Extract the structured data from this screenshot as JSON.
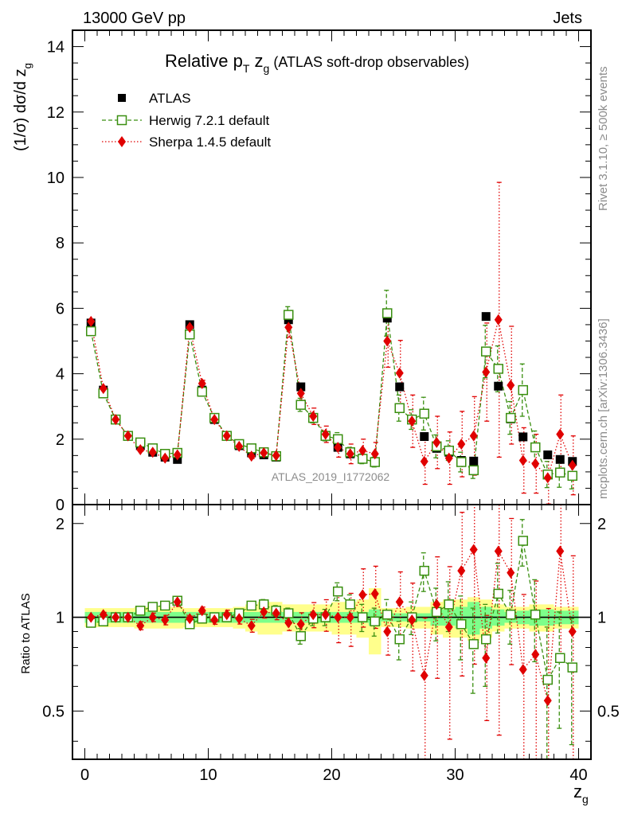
{
  "header": {
    "left": "13000 GeV pp",
    "right": "Jets"
  },
  "side_labels": {
    "rivet": "Rivet 3.1.10, ≥ 500k events",
    "mcplots": "mcplots.cern.ch [arXiv:1306.3436]"
  },
  "watermark": "ATLAS_2019_I1772062",
  "colors": {
    "atlas": "#000000",
    "herwig": "#3a8f10",
    "sherpa": "#e00000",
    "band_inner": "#7dff8a",
    "band_outer": "#ffff8c"
  },
  "chart_data": [
    {
      "name": "main",
      "type": "scatter",
      "title": "Relative pT zg (ATLAS soft-drop observables)",
      "title_parts": {
        "pre": "Relative p",
        "sub_t": "T",
        "mid": " z",
        "sub_g": "g",
        "post": " (ATLAS soft-drop observables)"
      },
      "ylabel": "(1/σ) dσ/d z",
      "ylabel_sub": "g",
      "xlim": [
        -1,
        41
      ],
      "ylim": [
        0,
        14.5
      ],
      "yticks": [
        0,
        2,
        4,
        6,
        8,
        10,
        12,
        14
      ],
      "x": [
        0.5,
        1.5,
        2.5,
        3.5,
        4.5,
        5.5,
        6.5,
        7.5,
        8.5,
        9.5,
        10.5,
        11.5,
        12.5,
        13.5,
        14.5,
        15.5,
        16.5,
        17.5,
        18.5,
        19.5,
        20.5,
        21.5,
        22.5,
        23.5,
        24.5,
        25.5,
        26.5,
        27.5,
        28.5,
        29.5,
        30.5,
        31.5,
        32.5,
        33.5,
        34.5,
        35.5,
        36.5,
        37.5,
        38.5,
        39.5
      ],
      "series": [
        {
          "name": "ATLAS",
          "marker": "filled-square",
          "values": [
            5.55,
            3.5,
            2.6,
            2.1,
            1.8,
            1.6,
            1.45,
            1.38,
            5.5,
            3.5,
            2.6,
            2.1,
            1.8,
            1.58,
            1.52,
            1.45,
            5.65,
            3.6,
            2.65,
            2.1,
            1.75,
            1.55,
            1.4,
            1.3,
            5.7,
            3.6,
            2.6,
            2.08,
            1.72,
            1.6,
            1.35,
            1.33,
            5.75,
            3.62,
            2.62,
            2.07,
            1.75,
            1.52,
            1.38,
            1.32
          ],
          "errors": [
            0.05,
            0.04,
            0.03,
            0.03,
            0.03,
            0.02,
            0.02,
            0.03,
            0.06,
            0.04,
            0.03,
            0.03,
            0.02,
            0.02,
            0.03,
            0.03,
            0.07,
            0.04,
            0.03,
            0.03,
            0.03,
            0.03,
            0.03,
            0.03,
            0.08,
            0.05,
            0.04,
            0.04,
            0.04,
            0.04,
            0.04,
            0.05,
            0.1,
            0.06,
            0.05,
            0.05,
            0.05,
            0.05,
            0.05,
            0.06
          ]
        },
        {
          "name": "Herwig 7.2.1 default",
          "marker": "open-square",
          "values": [
            5.3,
            3.4,
            2.6,
            2.1,
            1.9,
            1.72,
            1.55,
            1.58,
            5.2,
            3.45,
            2.65,
            2.1,
            1.85,
            1.72,
            1.6,
            1.48,
            5.8,
            3.05,
            2.65,
            2.1,
            2.0,
            1.6,
            1.4,
            1.3,
            5.85,
            2.95,
            2.6,
            2.78,
            1.78,
            1.65,
            1.3,
            1.05,
            4.68,
            4.15,
            2.65,
            3.5,
            1.75,
            0.92,
            0.98,
            0.88
          ],
          "errors": [
            0.05,
            0.05,
            0.05,
            0.05,
            0.05,
            0.05,
            0.05,
            0.05,
            0.1,
            0.1,
            0.08,
            0.07,
            0.06,
            0.06,
            0.06,
            0.06,
            0.25,
            0.2,
            0.15,
            0.15,
            0.2,
            0.15,
            0.15,
            0.15,
            0.7,
            0.4,
            0.3,
            0.5,
            0.35,
            0.3,
            0.3,
            0.25,
            0.8,
            0.7,
            0.5,
            0.8,
            0.5,
            0.4,
            0.45,
            0.4
          ]
        },
        {
          "name": "Sherpa 1.4.5 default",
          "marker": "filled-diamond",
          "values": [
            5.6,
            3.55,
            2.6,
            2.1,
            1.68,
            1.6,
            1.42,
            1.52,
            5.42,
            3.7,
            2.6,
            2.1,
            1.78,
            1.48,
            1.58,
            1.5,
            5.42,
            3.4,
            2.7,
            2.15,
            1.75,
            1.55,
            1.65,
            1.55,
            5.0,
            4.02,
            2.55,
            1.32,
            1.9,
            1.42,
            1.85,
            2.1,
            4.05,
            5.65,
            3.65,
            1.35,
            1.25,
            0.82,
            2.15,
            1.2
          ],
          "errors": [
            0.06,
            0.06,
            0.05,
            0.05,
            0.05,
            0.05,
            0.05,
            0.05,
            0.1,
            0.1,
            0.08,
            0.07,
            0.07,
            0.07,
            0.07,
            0.07,
            0.3,
            0.3,
            0.25,
            0.25,
            0.3,
            0.3,
            0.35,
            0.35,
            0.8,
            1.0,
            0.8,
            0.7,
            0.8,
            0.8,
            1.0,
            1.2,
            1.5,
            4.2,
            1.8,
            1.0,
            0.9,
            0.8,
            1.2,
            0.9
          ]
        }
      ]
    },
    {
      "name": "ratio",
      "type": "scatter",
      "ylabel": "Ratio to ATLAS",
      "xlabel": "z",
      "xlabel_sub": "g",
      "xlim": [
        -1,
        41
      ],
      "ylim": [
        0.35,
        2.3
      ],
      "yticks": [
        0.5,
        1,
        2
      ],
      "ytick_labels": [
        "0.5",
        "1",
        "2"
      ],
      "xticks": [
        0,
        10,
        20,
        30,
        40
      ],
      "xtick_labels": [
        "0",
        "10",
        "20",
        "30",
        "40"
      ],
      "band_inner": [
        0.04,
        0.04,
        0.04,
        0.04,
        0.04,
        0.04,
        0.04,
        0.04,
        0.04,
        0.04,
        0.04,
        0.04,
        0.04,
        0.04,
        0.04,
        0.04,
        0.04,
        0.04,
        0.04,
        0.04,
        0.04,
        0.04,
        0.04,
        0.06,
        0.03,
        0.03,
        0.03,
        0.03,
        0.06,
        0.06,
        0.08,
        0.12,
        0.08,
        0.06,
        0.04,
        0.05,
        0.06,
        0.06,
        0.05,
        0.05
      ],
      "band_outer": [
        0.07,
        0.07,
        0.07,
        0.07,
        0.08,
        0.08,
        0.08,
        0.08,
        0.07,
        0.07,
        0.07,
        0.07,
        0.08,
        0.1,
        0.12,
        0.12,
        0.1,
        0.1,
        0.1,
        0.1,
        0.12,
        0.12,
        0.14,
        0.24,
        0.07,
        0.07,
        0.08,
        0.08,
        0.12,
        0.14,
        0.14,
        0.16,
        0.14,
        0.1,
        0.08,
        0.08,
        0.1,
        0.1,
        0.08,
        0.08
      ],
      "series": [
        {
          "name": "Herwig 7.2.1 default",
          "values": [
            0.96,
            0.97,
            1.0,
            1.0,
            1.05,
            1.08,
            1.09,
            1.13,
            0.95,
            0.99,
            1.0,
            1.0,
            1.03,
            1.09,
            1.1,
            1.05,
            1.03,
            0.87,
            0.99,
            1.0,
            1.21,
            1.1,
            1.0,
            0.97,
            1.02,
            0.85,
            1.0,
            1.41,
            1.04,
            1.1,
            0.95,
            0.82,
            0.85,
            1.19,
            1.02,
            1.76,
            1.02,
            0.63,
            0.74,
            0.69
          ],
          "errors": [
            0.02,
            0.02,
            0.02,
            0.02,
            0.03,
            0.03,
            0.03,
            0.03,
            0.02,
            0.03,
            0.03,
            0.03,
            0.03,
            0.03,
            0.04,
            0.04,
            0.04,
            0.05,
            0.05,
            0.06,
            0.08,
            0.08,
            0.1,
            0.1,
            0.12,
            0.12,
            0.12,
            0.2,
            0.2,
            0.2,
            0.22,
            0.25,
            0.25,
            0.3,
            0.2,
            0.3,
            0.3,
            0.3,
            0.3,
            0.3
          ]
        },
        {
          "name": "Sherpa 1.4.5 default",
          "values": [
            1.0,
            1.02,
            1.0,
            1.0,
            0.94,
            1.0,
            0.98,
            1.12,
            0.99,
            1.05,
            0.98,
            1.02,
            0.99,
            0.94,
            1.04,
            1.03,
            0.96,
            0.95,
            1.02,
            1.02,
            1.0,
            1.0,
            1.18,
            1.19,
            0.9,
            1.12,
            0.98,
            0.65,
            1.1,
            0.93,
            1.41,
            1.65,
            0.74,
            1.63,
            1.39,
            0.68,
            0.76,
            0.54,
            1.63,
            0.9
          ]
        }
      ]
    }
  ],
  "legend": [
    {
      "label": "ATLAS"
    },
    {
      "label": "Herwig 7.2.1 default"
    },
    {
      "label": "Sherpa 1.4.5 default"
    }
  ]
}
